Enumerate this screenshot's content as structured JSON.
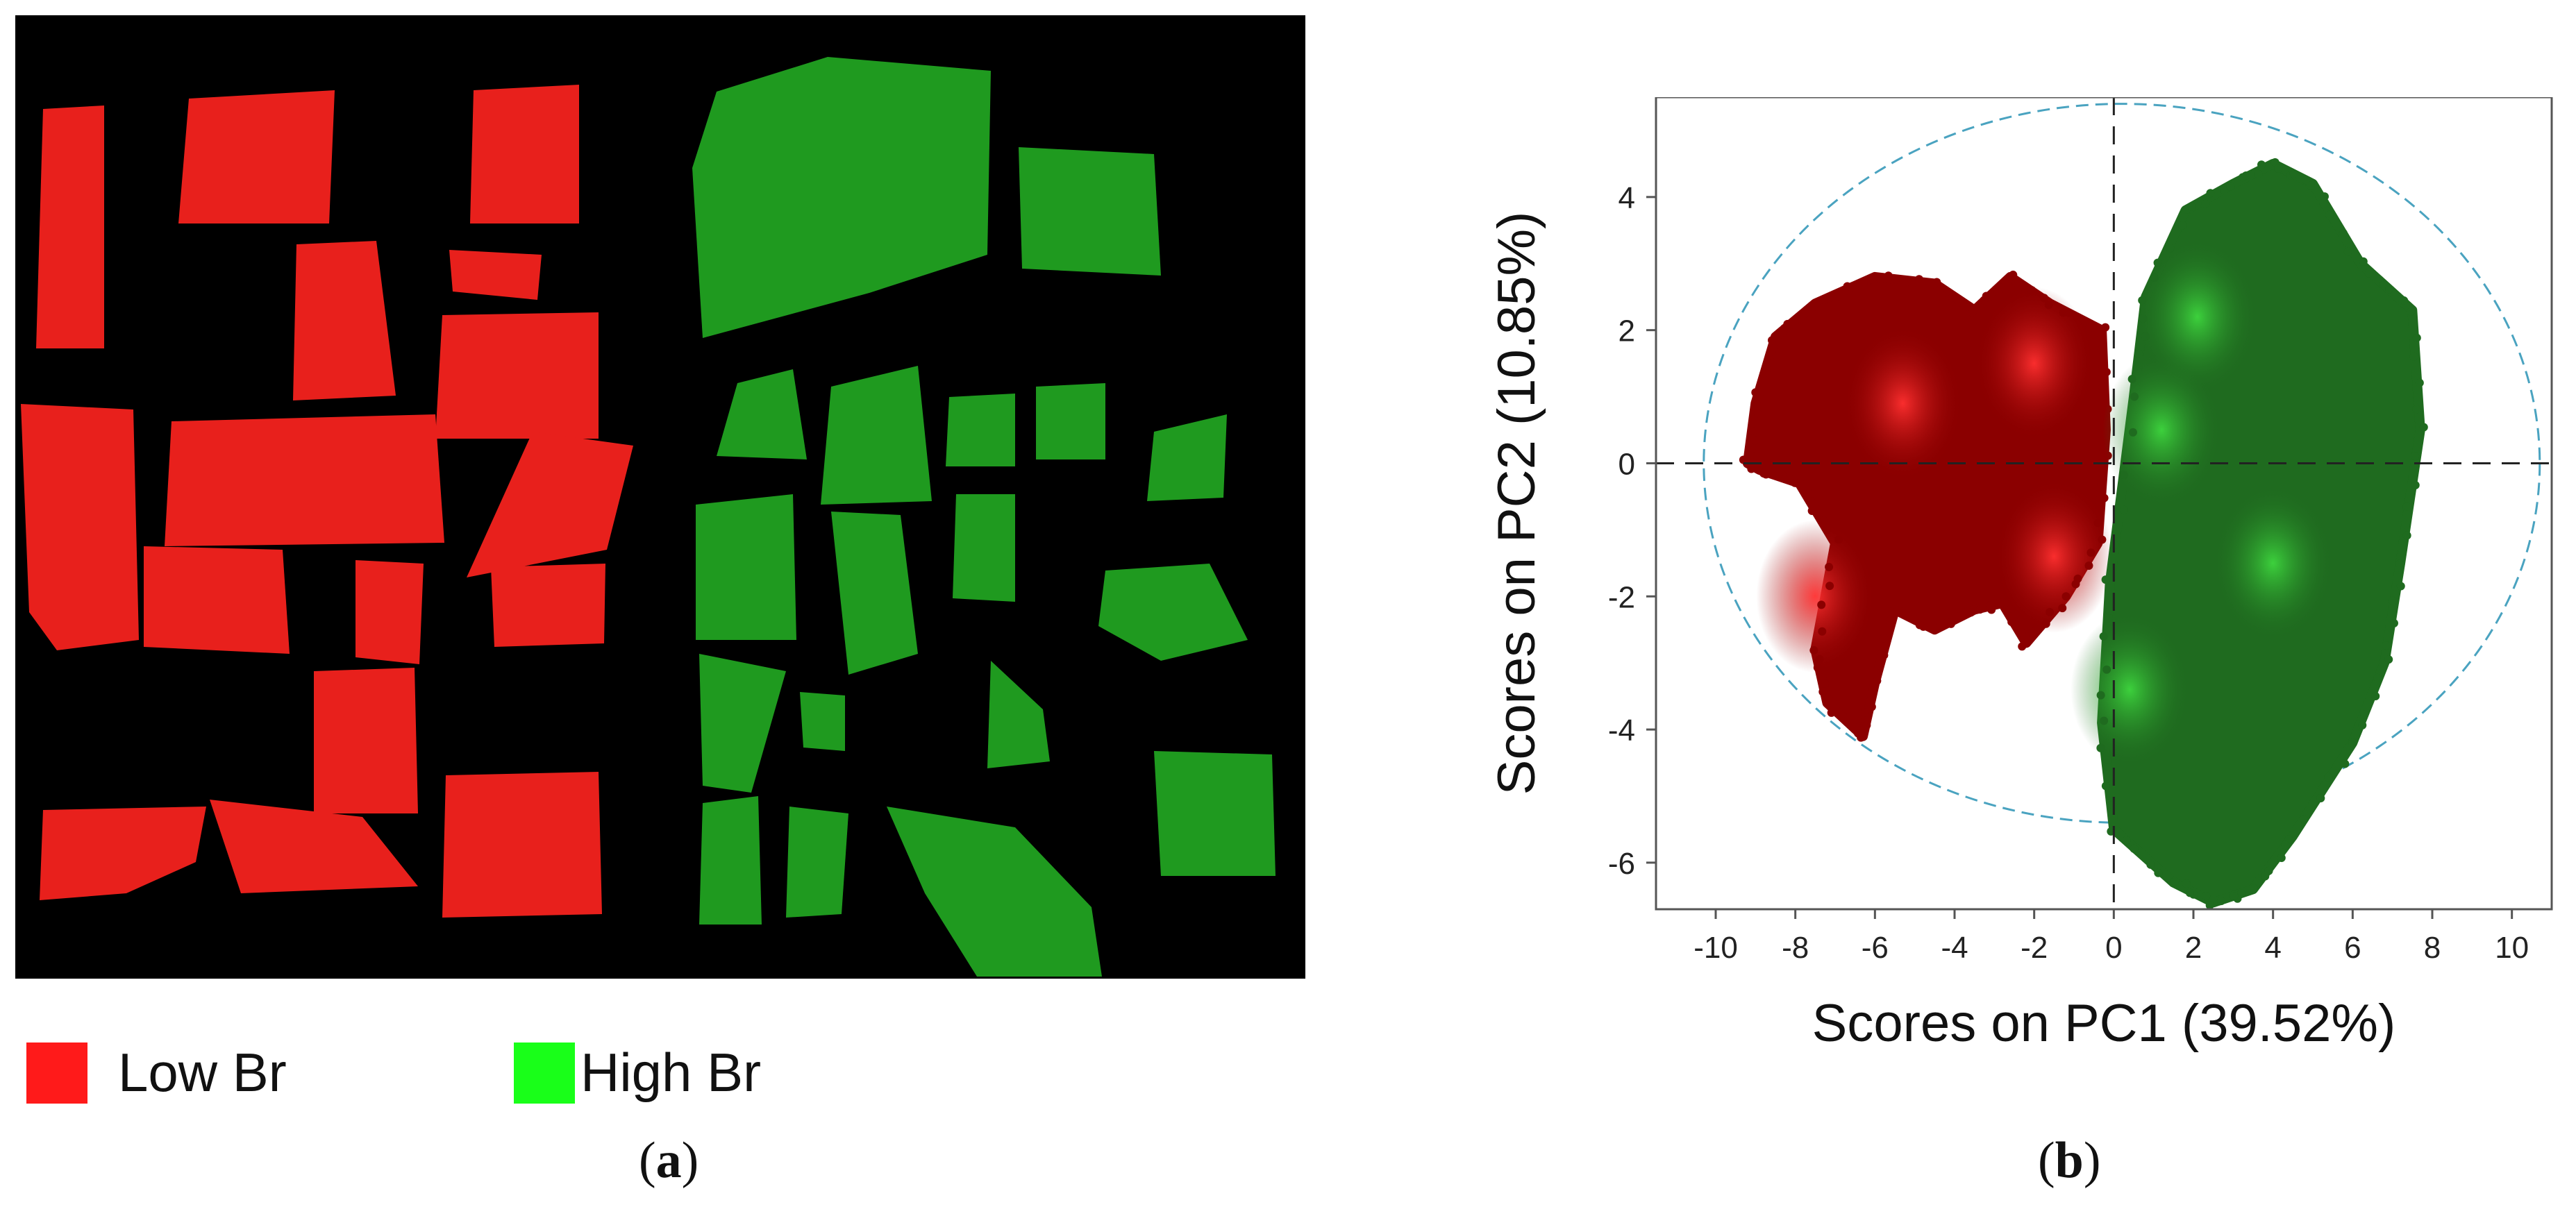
{
  "panel_a": {
    "legend": [
      {
        "label": "Low Br",
        "color": "#ff1a1a"
      },
      {
        "label": "High Br",
        "color": "#19ff19"
      }
    ],
    "caption_letter": "a",
    "class_colors": {
      "low": "#e8201c",
      "high": "#1f9a1f",
      "background": "#000000"
    }
  },
  "panel_b": {
    "caption_letter": "b"
  },
  "chart_data": {
    "type": "scatter",
    "xlabel": "Scores on PC1 (39.52%)",
    "ylabel": "Scores on PC2 (10.85%)",
    "xlim": [
      -11.5,
      11
    ],
    "ylim": [
      -6.7,
      5.5
    ],
    "xticks": [
      -10,
      -8,
      -6,
      -4,
      -2,
      0,
      2,
      4,
      6,
      8,
      10
    ],
    "yticks": [
      -6,
      -4,
      -2,
      0,
      2,
      4
    ],
    "grid": false,
    "reference_lines": {
      "x": 0,
      "y": 0,
      "style": "dashed"
    },
    "confidence_ellipse": {
      "center": [
        0.2,
        0
      ],
      "rx": 10.5,
      "ry": 5.4,
      "color": "#4aa3c0"
    },
    "series": [
      {
        "color": "#8b0000",
        "outline": [
          [
            -9.2,
            0.0
          ],
          [
            -9.0,
            0.9
          ],
          [
            -8.5,
            1.9
          ],
          [
            -7.5,
            2.4
          ],
          [
            -6.0,
            2.8
          ],
          [
            -4.5,
            2.7
          ],
          [
            -3.5,
            2.3
          ],
          [
            -2.6,
            2.8
          ],
          [
            -1.6,
            2.4
          ],
          [
            -0.3,
            2.0
          ],
          [
            -0.2,
            0.5
          ],
          [
            -0.4,
            -1.2
          ],
          [
            -1.2,
            -2.0
          ],
          [
            -2.2,
            -2.7
          ],
          [
            -2.8,
            -2.1
          ],
          [
            -3.5,
            -2.2
          ],
          [
            -4.5,
            -2.5
          ],
          [
            -5.5,
            -2.2
          ],
          [
            -6.0,
            -3.3
          ],
          [
            -6.3,
            -4.1
          ],
          [
            -7.2,
            -3.6
          ],
          [
            -7.5,
            -2.8
          ],
          [
            -7.0,
            -1.2
          ],
          [
            -7.9,
            -0.3
          ],
          [
            -8.9,
            -0.1
          ]
        ],
        "hotspots": [
          [
            -5.3,
            0.9
          ],
          [
            -7.5,
            -2.0
          ],
          [
            -2.0,
            1.5
          ],
          [
            -1.5,
            -1.4
          ]
        ]
      },
      {
        "color": "#1f6b1f",
        "outline": [
          [
            -0.1,
            -1.8
          ],
          [
            0.5,
            1.0
          ],
          [
            0.8,
            2.5
          ],
          [
            1.8,
            3.8
          ],
          [
            3.0,
            4.2
          ],
          [
            4.0,
            4.5
          ],
          [
            5.0,
            4.2
          ],
          [
            6.2,
            3.0
          ],
          [
            7.5,
            2.3
          ],
          [
            7.7,
            0.5
          ],
          [
            7.2,
            -1.5
          ],
          [
            6.8,
            -3.0
          ],
          [
            6.0,
            -4.2
          ],
          [
            4.5,
            -5.6
          ],
          [
            3.5,
            -6.4
          ],
          [
            2.5,
            -6.6
          ],
          [
            1.5,
            -6.3
          ],
          [
            0.0,
            -5.5
          ],
          [
            -0.3,
            -3.9
          ]
        ],
        "hotspots": [
          [
            2.1,
            2.2
          ],
          [
            1.2,
            0.5
          ],
          [
            0.4,
            -3.4
          ],
          [
            4.0,
            -1.5
          ]
        ]
      }
    ]
  }
}
